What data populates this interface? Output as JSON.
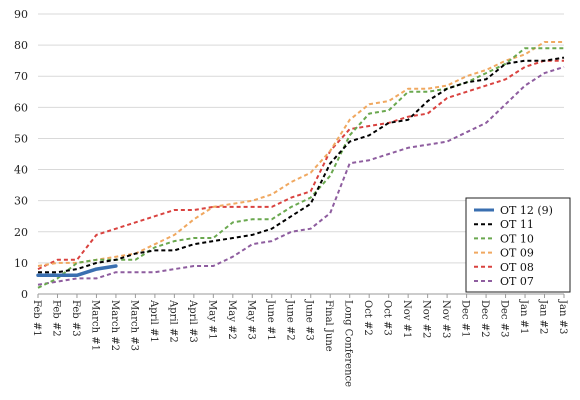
{
  "chart_data": {
    "type": "line",
    "title": "",
    "xlabel": "",
    "ylabel": "",
    "ylim": [
      0,
      90
    ],
    "yticks": [
      0,
      10,
      20,
      30,
      40,
      50,
      60,
      70,
      80,
      90
    ],
    "grid": true,
    "legend_position": "bottom-right",
    "categories": [
      "Feb #1",
      "Feb #2",
      "Feb #3",
      "March #1",
      "March #2",
      "March #3",
      "April #1",
      "April #2",
      "April #3",
      "May #1",
      "May #2",
      "May #3",
      "June #1",
      "June #2",
      "June #3",
      "Final June",
      "Long Conference",
      "Oct #2",
      "Oct #3",
      "Nov #1",
      "Nov #2",
      "Nov #3",
      "Dec #1",
      "Dec #2",
      "Dec #3",
      "Jan #1",
      "Jan #2",
      "Jan #3"
    ],
    "series": [
      {
        "name": "OT 12 (9)",
        "color": "#3a6fb0",
        "dash": "solid",
        "width": 3.5,
        "values": [
          6,
          6,
          6,
          8,
          9,
          null,
          null,
          null,
          null,
          null,
          null,
          null,
          null,
          null,
          null,
          null,
          null,
          null,
          null,
          null,
          null,
          null,
          null,
          null,
          null,
          null,
          null,
          null
        ]
      },
      {
        "name": "OT 11",
        "color": "#000000",
        "dash": "4,3",
        "width": 2,
        "values": [
          7,
          7,
          8,
          10,
          11,
          13,
          14,
          14,
          16,
          17,
          18,
          19,
          21,
          25,
          29,
          42,
          49,
          51,
          55,
          56,
          62,
          66,
          68,
          69,
          74,
          75,
          75,
          76
        ]
      },
      {
        "name": "OT 10",
        "color": "#6aa84f",
        "dash": "4,3",
        "width": 2,
        "values": [
          2,
          5,
          10,
          11,
          11,
          11,
          15,
          17,
          18,
          18,
          23,
          24,
          24,
          28,
          31,
          38,
          51,
          58,
          59,
          65,
          65,
          66,
          68,
          71,
          74,
          79,
          79,
          79
        ]
      },
      {
        "name": "OT 09",
        "color": "#f0a860",
        "dash": "4,3",
        "width": 2,
        "values": [
          9,
          10,
          10,
          11,
          12,
          13,
          16,
          19,
          24,
          28,
          29,
          30,
          32,
          36,
          39,
          46,
          56,
          61,
          62,
          66,
          66,
          67,
          70,
          72,
          75,
          77,
          81,
          81
        ]
      },
      {
        "name": "OT 08",
        "color": "#d9423f",
        "dash": "4,3",
        "width": 2,
        "values": [
          8,
          11,
          11,
          19,
          21,
          23,
          25,
          27,
          27,
          28,
          28,
          28,
          28,
          31,
          33,
          46,
          53,
          54,
          55,
          57,
          58,
          63,
          65,
          67,
          69,
          73,
          75,
          75
        ]
      },
      {
        "name": "OT 07",
        "color": "#8e5d9f",
        "dash": "4,3",
        "width": 2,
        "values": [
          3,
          4,
          5,
          5,
          7,
          7,
          7,
          8,
          9,
          9,
          12,
          16,
          17,
          20,
          21,
          26,
          42,
          43,
          45,
          47,
          48,
          49,
          52,
          55,
          61,
          67,
          71,
          73
        ]
      }
    ]
  }
}
